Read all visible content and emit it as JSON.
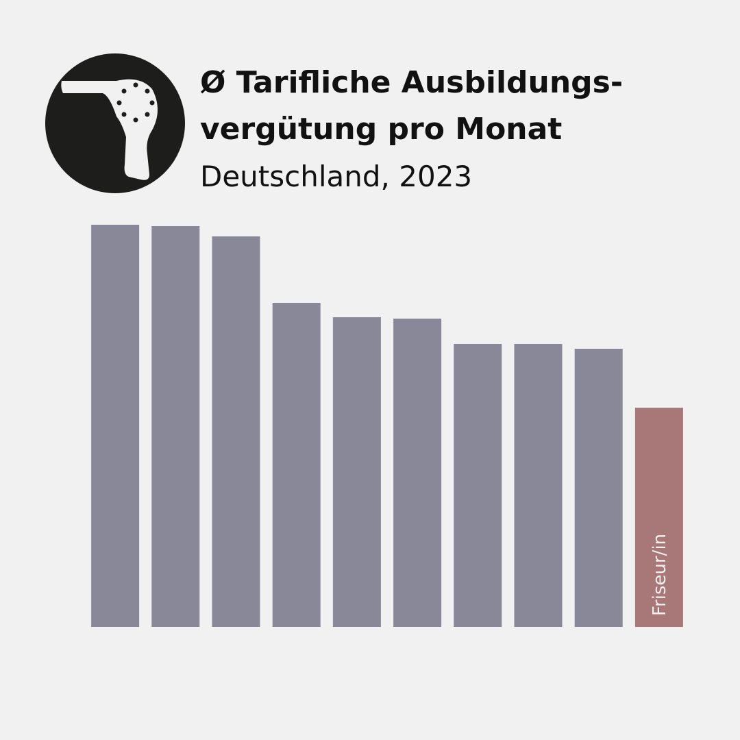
{
  "chart_data": {
    "type": "bar",
    "title": [
      "Ø Tarifliche Ausbildungs-",
      "vergütung pro Monat"
    ],
    "subtitle": "Deutschland, 2023",
    "categories": [
      null,
      null,
      null,
      null,
      null,
      null,
      null,
      null,
      null,
      "Friseur/in"
    ],
    "values": [
      1174,
      1170,
      1140,
      946,
      904,
      900,
      826,
      826,
      812,
      640
    ],
    "colors": [
      "#888898",
      "#888898",
      "#888898",
      "#888898",
      "#888898",
      "#888898",
      "#888898",
      "#888898",
      "#888898",
      "#a87878"
    ]
  }
}
